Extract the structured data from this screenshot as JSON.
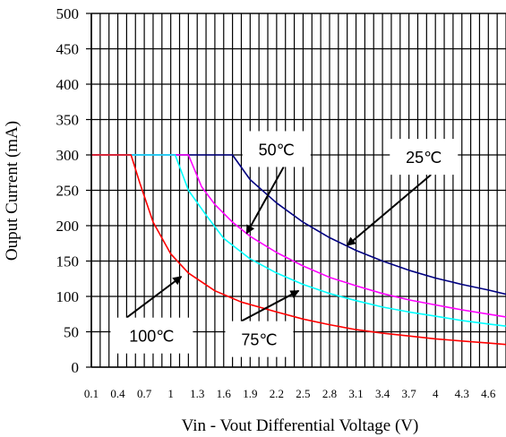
{
  "chart_data": {
    "type": "line",
    "xlabel": "Vin - Vout Differential Voltage (V)",
    "ylabel": "Ouput Current (mA)",
    "xlim": [
      0.1,
      4.8
    ],
    "ylim": [
      0,
      500
    ],
    "x_ticks": [
      "0.1",
      "0.4",
      "0.7",
      "1",
      "1.3",
      "1.6",
      "1.9",
      "2.2",
      "2.5",
      "2.8",
      "3.1",
      "3.4",
      "3.7",
      "4",
      "4.3",
      "4.6"
    ],
    "y_ticks": [
      "0",
      "50",
      "100",
      "150",
      "200",
      "250",
      "300",
      "350",
      "400",
      "450",
      "500"
    ],
    "grid": true,
    "series": [
      {
        "name": "25℃",
        "color": "#000080",
        "points": [
          [
            0.1,
            300
          ],
          [
            1.7,
            300
          ],
          [
            1.9,
            265
          ],
          [
            2.2,
            232
          ],
          [
            2.5,
            205
          ],
          [
            2.8,
            183
          ],
          [
            3.1,
            165
          ],
          [
            3.4,
            150
          ],
          [
            3.7,
            137
          ],
          [
            4.0,
            126
          ],
          [
            4.3,
            117
          ],
          [
            4.6,
            109
          ],
          [
            4.8,
            103
          ]
        ]
      },
      {
        "name": "50℃",
        "color": "#ff00ff",
        "points": [
          [
            0.1,
            300
          ],
          [
            1.2,
            300
          ],
          [
            1.35,
            255
          ],
          [
            1.5,
            230
          ],
          [
            1.7,
            205
          ],
          [
            1.9,
            185
          ],
          [
            2.2,
            162
          ],
          [
            2.5,
            143
          ],
          [
            2.8,
            127
          ],
          [
            3.1,
            115
          ],
          [
            3.4,
            104
          ],
          [
            3.7,
            95
          ],
          [
            4.0,
            88
          ],
          [
            4.3,
            81
          ],
          [
            4.6,
            75
          ],
          [
            4.8,
            71
          ]
        ]
      },
      {
        "name": "75℃",
        "color": "#00ffff",
        "points": [
          [
            0.1,
            300
          ],
          [
            1.05,
            300
          ],
          [
            1.2,
            250
          ],
          [
            1.4,
            215
          ],
          [
            1.6,
            182
          ],
          [
            1.9,
            153
          ],
          [
            2.2,
            133
          ],
          [
            2.5,
            117
          ],
          [
            2.8,
            104
          ],
          [
            3.1,
            94
          ],
          [
            3.4,
            85
          ],
          [
            3.7,
            78
          ],
          [
            4.0,
            72
          ],
          [
            4.3,
            66
          ],
          [
            4.6,
            61
          ],
          [
            4.8,
            58
          ]
        ]
      },
      {
        "name": "100℃",
        "color": "#ff0000",
        "points": [
          [
            0.1,
            300
          ],
          [
            0.55,
            300
          ],
          [
            0.65,
            260
          ],
          [
            0.8,
            205
          ],
          [
            1.0,
            160
          ],
          [
            1.2,
            133
          ],
          [
            1.5,
            108
          ],
          [
            1.8,
            92
          ],
          [
            2.2,
            78
          ],
          [
            2.5,
            68
          ],
          [
            2.8,
            60
          ],
          [
            3.1,
            53
          ],
          [
            3.4,
            48
          ],
          [
            3.7,
            44
          ],
          [
            4.0,
            40
          ],
          [
            4.3,
            37
          ],
          [
            4.6,
            34
          ],
          [
            4.8,
            32
          ]
        ]
      }
    ],
    "annotations": [
      {
        "label": "50℃",
        "tail": [
          2.28,
          283
        ],
        "head": [
          1.86,
          189
        ]
      },
      {
        "label": "25℃",
        "tail": [
          3.95,
          272
        ],
        "head": [
          3.0,
          172
        ]
      },
      {
        "label": "100℃",
        "tail": [
          0.5,
          70
        ],
        "head": [
          1.12,
          128
        ]
      },
      {
        "label": "75℃",
        "tail": [
          1.8,
          65
        ],
        "head": [
          2.45,
          108
        ]
      }
    ]
  }
}
